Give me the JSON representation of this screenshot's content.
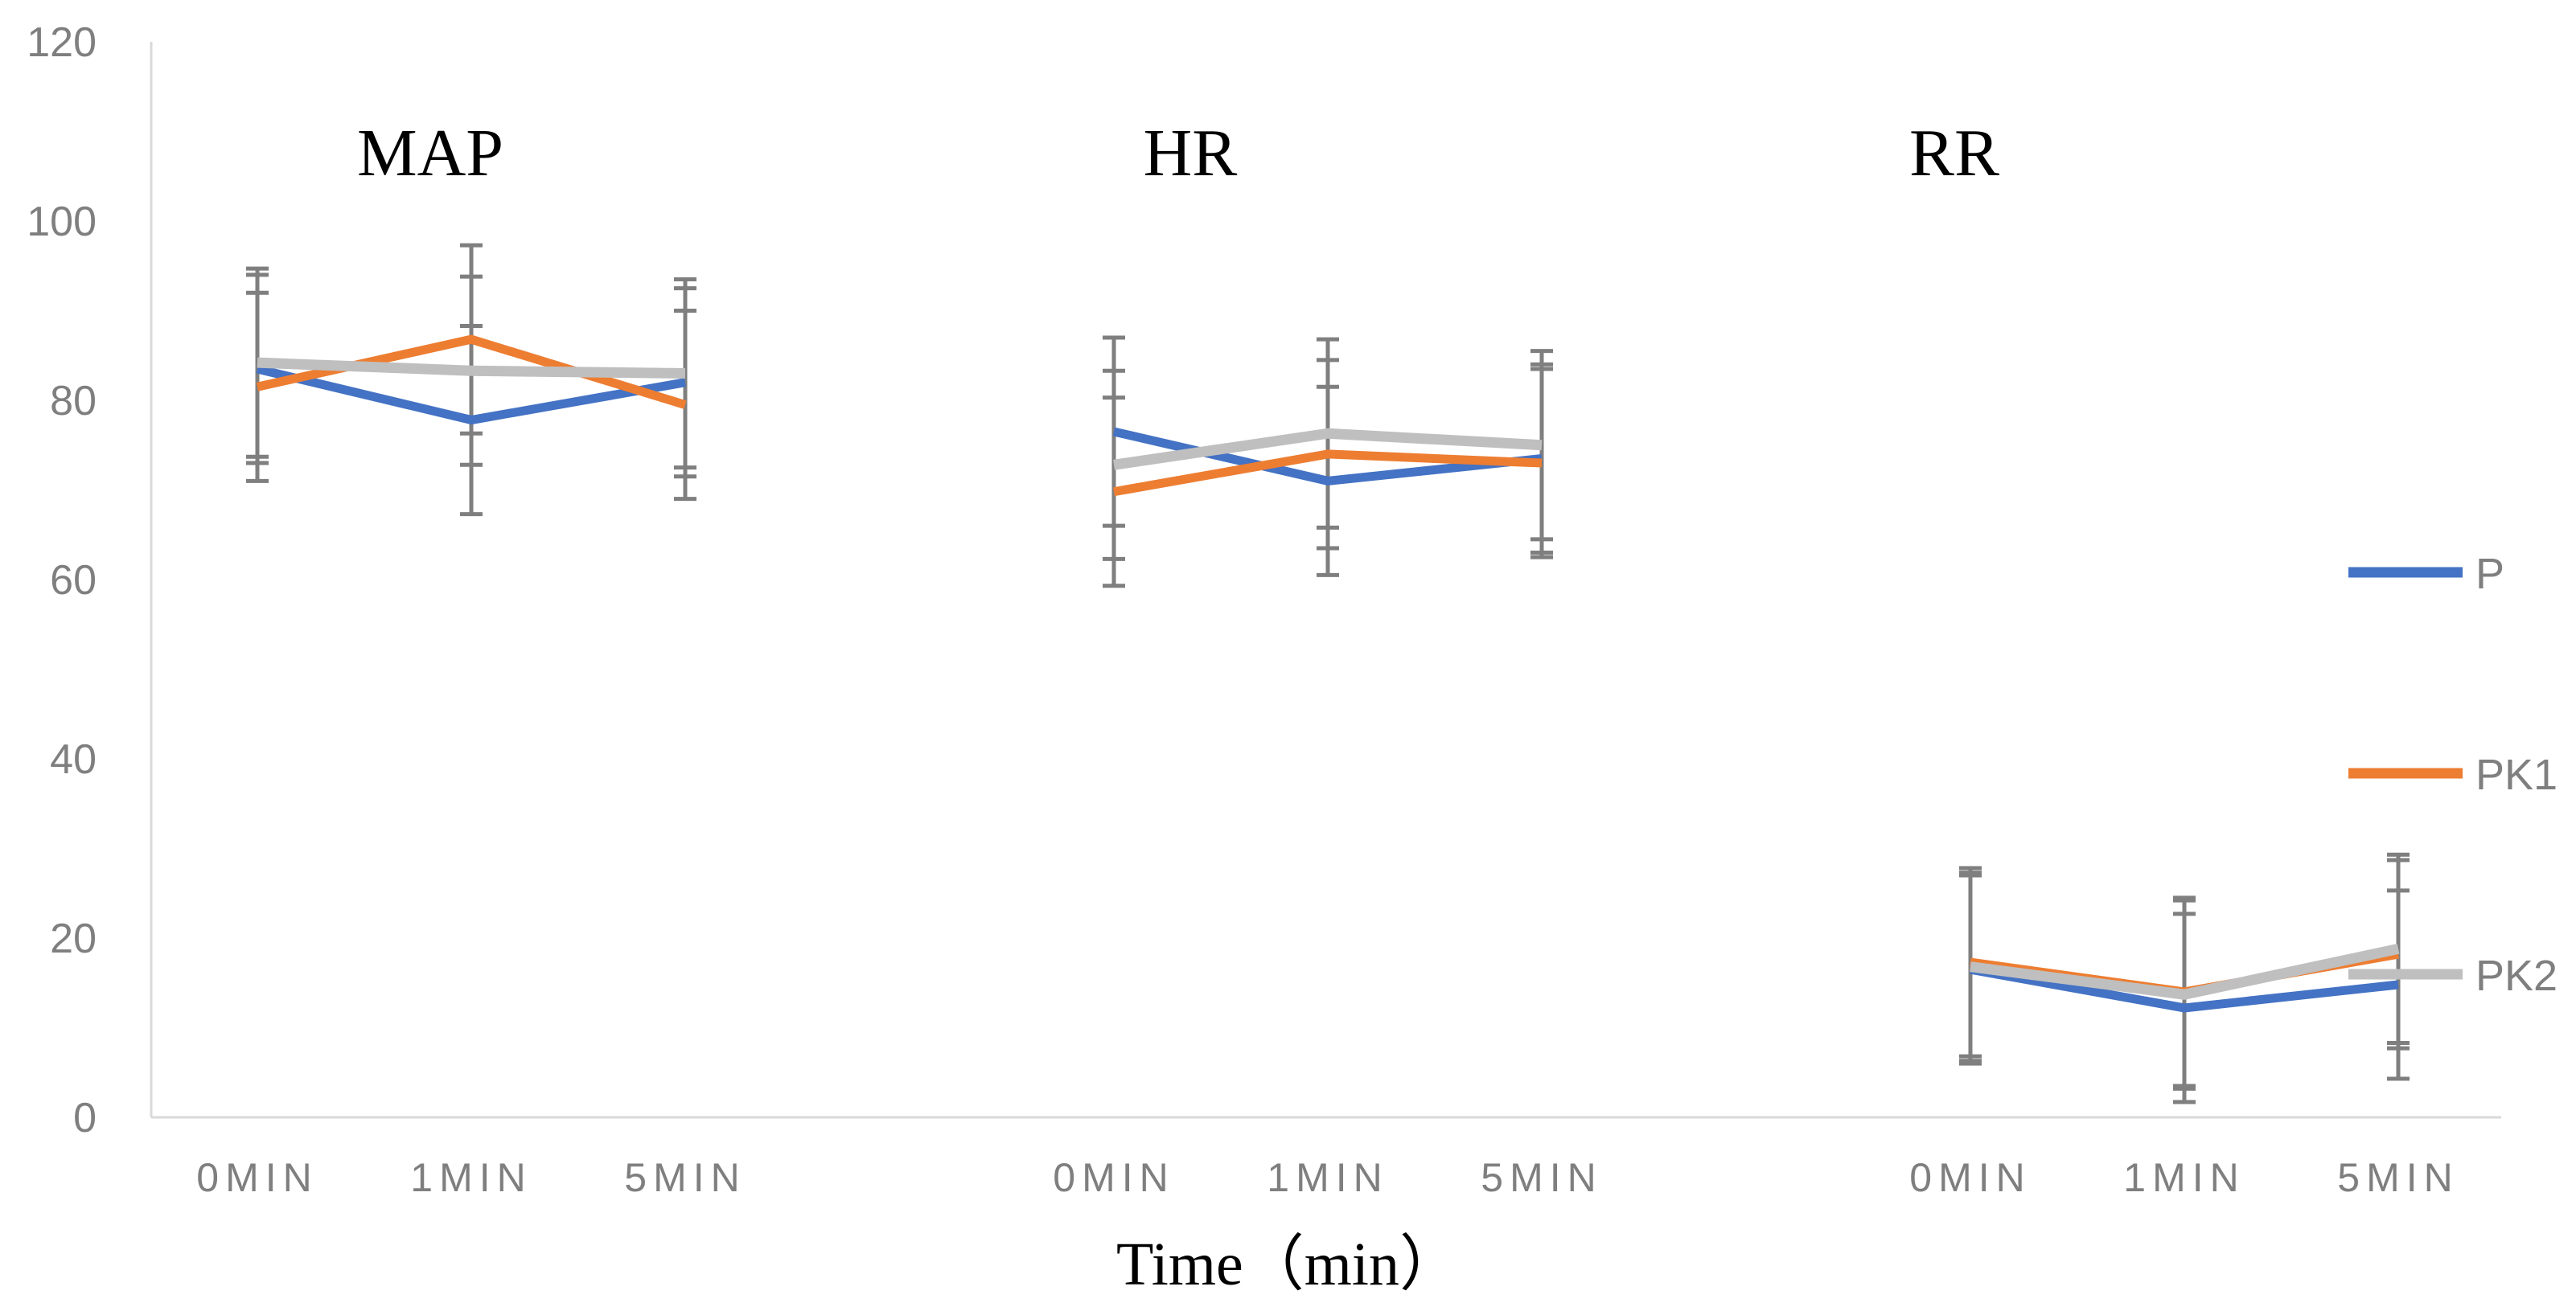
{
  "chart_data": {
    "type": "line",
    "xlabel": "Time（min）",
    "ylabel": "",
    "ylim": [
      0,
      120
    ],
    "yticks": [
      0,
      20,
      40,
      60,
      80,
      100,
      120
    ],
    "grid": false,
    "legend_position": "right",
    "groups": [
      {
        "label": "MAP",
        "categories": [
          "0MIN",
          "1MIN",
          "5MIN"
        ],
        "series": [
          {
            "name": "P",
            "values": [
              83.5,
              77.8,
              82.0
            ],
            "error": [
              10.5,
              10.5,
              10.5
            ]
          },
          {
            "name": "PK1",
            "values": [
              81.5,
              86.8,
              79.5
            ],
            "error": [
              10.5,
              10.5,
              10.5
            ]
          },
          {
            "name": "PK2",
            "values": [
              84.2,
              83.3,
              83.0
            ],
            "error": [
              10.5,
              10.5,
              10.5
            ]
          }
        ]
      },
      {
        "label": "HR",
        "categories": [
          "0MIN",
          "1MIN",
          "5MIN"
        ],
        "series": [
          {
            "name": "P",
            "values": [
              76.5,
              71.0,
              73.5
            ],
            "error": [
              10.5,
              10.5,
              10.5
            ]
          },
          {
            "name": "PK1",
            "values": [
              69.8,
              74.0,
              73.0
            ],
            "error": [
              10.5,
              10.5,
              10.5
            ]
          },
          {
            "name": "PK2",
            "values": [
              72.8,
              76.3,
              75.0
            ],
            "error": [
              10.5,
              10.5,
              10.5
            ]
          }
        ]
      },
      {
        "label": "RR",
        "categories": [
          "0MIN",
          "1MIN",
          "5MIN"
        ],
        "series": [
          {
            "name": "P",
            "values": [
              16.5,
              12.2,
              14.8
            ],
            "error": [
              10.5,
              10.5,
              10.5
            ]
          },
          {
            "name": "PK1",
            "values": [
              17.3,
              14.0,
              18.2
            ],
            "error": [
              10.5,
              10.5,
              10.5
            ]
          },
          {
            "name": "PK2",
            "values": [
              16.8,
              13.7,
              18.8
            ],
            "error": [
              10.5,
              10.5,
              10.5
            ]
          }
        ]
      }
    ],
    "colors": {
      "P": "#4472c4",
      "PK1": "#ed7d31",
      "PK2": "#bfbfbf",
      "errorbar": "#7f7f7f",
      "axis": "#d9d9d9"
    }
  }
}
